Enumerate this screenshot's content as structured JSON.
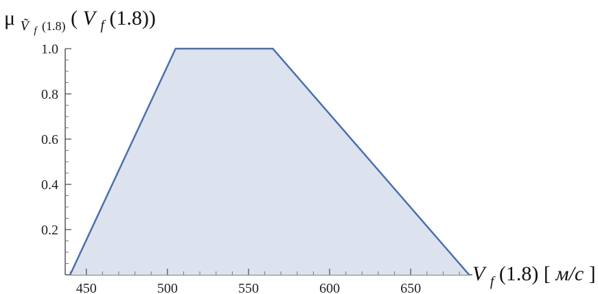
{
  "chart_data": {
    "type": "area",
    "x": [
      440,
      505,
      565,
      686
    ],
    "y": [
      0,
      1.0,
      1.0,
      0
    ],
    "xlim": [
      437,
      688
    ],
    "ylim": [
      0,
      1.0
    ],
    "x_ticks": [
      450,
      500,
      550,
      600,
      650
    ],
    "x_tick_labels": [
      "450",
      "500",
      "550",
      "600",
      "650"
    ],
    "y_ticks": [
      0.2,
      0.4,
      0.6,
      0.8,
      1.0
    ],
    "y_tick_labels": [
      "0.2",
      "0.4",
      "0.6",
      "0.8",
      "1.0"
    ],
    "xlabel": {
      "main": "V",
      "sub": "f",
      "rest": " (1.8) [",
      "unit": "м/с",
      "close": "]"
    },
    "ylabel": {
      "mu": "μ",
      "sub_main": "Ṽ",
      "sub_sub": "f",
      "sub_rest": " (1.8)",
      "open": "(",
      "main": "V",
      "main_sub": "f",
      "rest": " (1.8))"
    },
    "grid": false,
    "colors": {
      "line": "#4a6fae",
      "fill": "#dce3ef"
    }
  }
}
